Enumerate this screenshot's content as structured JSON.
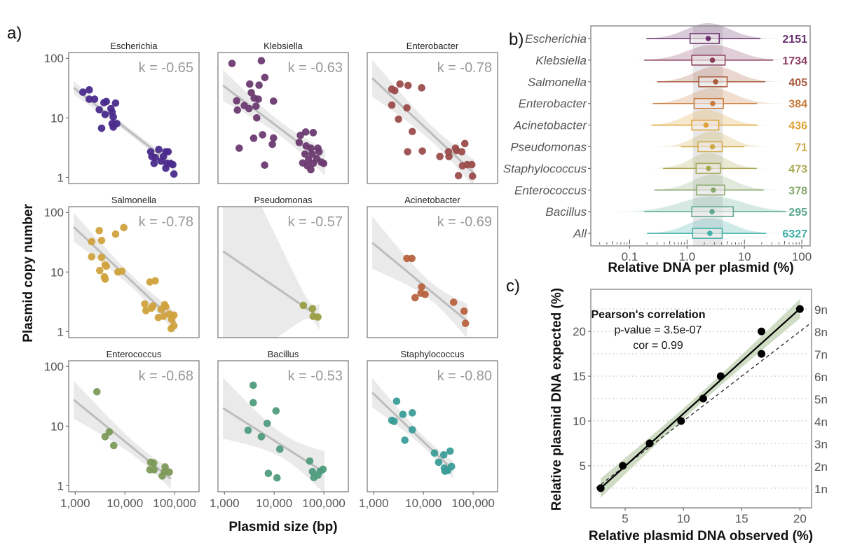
{
  "panel_labels": {
    "a": "a)",
    "b": "b)",
    "c": "c)"
  },
  "chart_data": [
    {
      "type": "scatter",
      "panel": "a",
      "xlabel": "Plasmid size (bp)",
      "ylabel": "Plasmid copy number",
      "x_scale": "log",
      "y_scale": "log",
      "xlim": [
        740,
        310000
      ],
      "ylim": [
        0.79,
        125
      ],
      "x_ticks": [
        1000,
        10000,
        100000
      ],
      "x_tick_labels": [
        "1,000",
        "10,000",
        "100,000"
      ],
      "y_ticks": [
        1,
        10,
        100
      ],
      "y_tick_labels": [
        "1",
        "10",
        "100"
      ],
      "grid": false,
      "trend_line_color": "#bdbdbd",
      "band_color": "#e6e6e6",
      "facets": [
        {
          "name": "Escherichia",
          "k_label": "k = -0.65",
          "k": -0.65,
          "color": "#4a2a8c",
          "points": [
            [
              1430,
              27
            ],
            [
              1920,
              29.5
            ],
            [
              1920,
              20.6
            ],
            [
              2460,
              20.6
            ],
            [
              3050,
              13.7
            ],
            [
              3790,
              18
            ],
            [
              4230,
              18.8
            ],
            [
              4000,
              11.4
            ],
            [
              5240,
              14.3
            ],
            [
              5530,
              12.5
            ],
            [
              6500,
              17.7
            ],
            [
              5840,
              10.4
            ],
            [
              5530,
              8
            ],
            [
              6870,
              8
            ],
            [
              5840,
              7
            ],
            [
              3400,
              6.7
            ],
            [
              33000,
              2.7
            ],
            [
              40900,
              2.15
            ],
            [
              48100,
              2.95
            ],
            [
              66500,
              2.7
            ],
            [
              74100,
              2.7
            ],
            [
              38700,
              1.72
            ],
            [
              53600,
              1.88
            ],
            [
              70200,
              1.72
            ],
            [
              92000,
              1.64
            ],
            [
              66500,
              1.43
            ],
            [
              97000,
              1.14
            ],
            [
              34800,
              2.25
            ],
            [
              59700,
              2.25
            ],
            [
              82600,
              1.72
            ]
          ]
        },
        {
          "name": "Klebsiella",
          "k_label": "k = -0.63",
          "k": -0.63,
          "color": "#6b3a70",
          "points": [
            [
              1420,
              82
            ],
            [
              5530,
              91
            ],
            [
              6500,
              47.6
            ],
            [
              3220,
              37
            ],
            [
              4970,
              35.4
            ],
            [
              3470,
              26.5
            ],
            [
              3960,
              21.5
            ],
            [
              4800,
              20.6
            ],
            [
              1760,
              19.3
            ],
            [
              2510,
              16.1
            ],
            [
              3120,
              14.3
            ],
            [
              4320,
              15.7
            ],
            [
              9700,
              19.1
            ],
            [
              1820,
              13.5
            ],
            [
              4460,
              10
            ],
            [
              3870,
              4.55
            ],
            [
              5840,
              5.2
            ],
            [
              9700,
              4.6
            ],
            [
              9200,
              3.6
            ],
            [
              1980,
              3.1
            ],
            [
              6440,
              1.61
            ],
            [
              33700,
              5.1
            ],
            [
              43100,
              5.8
            ],
            [
              61000,
              5.65
            ],
            [
              31900,
              3.87
            ],
            [
              44100,
              3.38
            ],
            [
              54700,
              3.1
            ],
            [
              75700,
              3.1
            ],
            [
              41800,
              2.47
            ],
            [
              57800,
              2.47
            ],
            [
              80000,
              2.7
            ],
            [
              49100,
              1.97
            ],
            [
              37500,
              1.75
            ],
            [
              61000,
              1.72
            ],
            [
              89000,
              1.8
            ],
            [
              46500,
              1.57
            ],
            [
              54700,
              1.35
            ],
            [
              99000,
              1.72
            ],
            [
              71800,
              2.06
            ]
          ]
        },
        {
          "name": "Enterobacter",
          "k_label": "k = -0.78",
          "k": -0.78,
          "color": "#9c4d4d",
          "points": [
            [
              2310,
              30.3
            ],
            [
              2650,
              28.7
            ],
            [
              3370,
              37
            ],
            [
              4910,
              35
            ],
            [
              9200,
              32
            ],
            [
              2310,
              16.4
            ],
            [
              4650,
              14.7
            ],
            [
              3150,
              9.5
            ],
            [
              5970,
              5.9
            ],
            [
              4810,
              2.7
            ],
            [
              9500,
              2.77
            ],
            [
              21400,
              2.25
            ],
            [
              32600,
              2.25
            ],
            [
              31900,
              2.7
            ],
            [
              44100,
              3.1
            ],
            [
              59000,
              2.7
            ],
            [
              68000,
              3.7
            ],
            [
              46500,
              2.82
            ],
            [
              61000,
              1.57
            ],
            [
              75700,
              1.64
            ],
            [
              94000,
              1.64
            ],
            [
              50700,
              1.07
            ],
            [
              97000,
              1.05
            ]
          ]
        },
        {
          "name": "Salmonella",
          "k_label": "k = -0.78",
          "k": -0.78,
          "color": "#d0a23e",
          "points": [
            [
              2140,
              32.3
            ],
            [
              3050,
              49.4
            ],
            [
              3400,
              33.8
            ],
            [
              6500,
              43.2
            ],
            [
              9500,
              55.6
            ],
            [
              2140,
              18
            ],
            [
              3400,
              17.6
            ],
            [
              4230,
              12.5
            ],
            [
              4000,
              13.1
            ],
            [
              3120,
              10.6
            ],
            [
              3870,
              8.3
            ],
            [
              4000,
              7.6
            ],
            [
              7240,
              10
            ],
            [
              8710,
              10.3
            ],
            [
              31900,
              6.8
            ],
            [
              40800,
              7.1
            ],
            [
              25100,
              2.9
            ],
            [
              26500,
              2.25
            ],
            [
              34000,
              2.47
            ],
            [
              36700,
              2.7
            ],
            [
              63000,
              2.82
            ],
            [
              66500,
              2.6
            ],
            [
              53600,
              2.35
            ],
            [
              47100,
              1.72
            ],
            [
              59700,
              1.8
            ],
            [
              78200,
              1.97
            ],
            [
              97000,
              1.88
            ],
            [
              87100,
              1.6
            ],
            [
              97000,
              1.25
            ],
            [
              85300,
              1.12
            ]
          ]
        },
        {
          "name": "Pseudomonas",
          "k_label": "k = -0.57",
          "k": -0.57,
          "color": "#9a9e45",
          "points": [
            [
              38700,
              2.75
            ],
            [
              59000,
              2.42
            ],
            [
              61000,
              1.8
            ],
            [
              75700,
              1.75
            ]
          ]
        },
        {
          "name": "Acinetobacter",
          "k_label": "k = -0.69",
          "k": -0.69,
          "color": "#b8633f",
          "points": [
            [
              4650,
              16.9
            ],
            [
              5840,
              16.9
            ],
            [
              6790,
              3.7
            ],
            [
              9200,
              5.6
            ],
            [
              8910,
              4.4
            ],
            [
              10800,
              4.2
            ],
            [
              40400,
              3.1
            ],
            [
              65800,
              2.2
            ],
            [
              70200,
              1.37
            ]
          ]
        },
        {
          "name": "Enterococcus",
          "k_label": "k = -0.68",
          "k": -0.68,
          "color": "#7c9a58",
          "points": [
            [
              2740,
              37.7
            ],
            [
              4000,
              6.65
            ],
            [
              4860,
              8
            ],
            [
              5970,
              4.72
            ],
            [
              33000,
              2.47
            ],
            [
              37900,
              2.4
            ],
            [
              31900,
              1.85
            ],
            [
              38700,
              1.85
            ],
            [
              64400,
              2.06
            ],
            [
              63000,
              1.72
            ],
            [
              78200,
              1.69
            ],
            [
              56500,
              1.46
            ]
          ]
        },
        {
          "name": "Bacillus",
          "k_label": "k = -0.53",
          "k": -0.53,
          "color": "#4f9c7e",
          "points": [
            [
              3790,
              48.5
            ],
            [
              3790,
              24.7
            ],
            [
              10900,
              18
            ],
            [
              7240,
              11.1
            ],
            [
              2990,
              8.5
            ],
            [
              5530,
              6.65
            ],
            [
              13000,
              4.1
            ],
            [
              7650,
              1.61
            ],
            [
              11400,
              1.35
            ],
            [
              51900,
              2.58
            ],
            [
              59000,
              1.72
            ],
            [
              63000,
              1.37
            ],
            [
              84400,
              1.75
            ],
            [
              96000,
              1.88
            ],
            [
              75700,
              1.5
            ]
          ]
        },
        {
          "name": "Staphylococcus",
          "k_label": "k = -0.80",
          "k": -0.8,
          "color": "#3b9d97",
          "points": [
            [
              2890,
              26.2
            ],
            [
              2310,
              12.5
            ],
            [
              2570,
              12
            ],
            [
              3870,
              15.7
            ],
            [
              5970,
              16.7
            ],
            [
              5970,
              8.7
            ],
            [
              4230,
              5.8
            ],
            [
              16700,
              3.53
            ],
            [
              25700,
              3.29
            ],
            [
              34400,
              3.8
            ],
            [
              20200,
              2.47
            ],
            [
              26300,
              1.97
            ],
            [
              29300,
              1.85
            ],
            [
              36700,
              2.1
            ],
            [
              30800,
              1.8
            ],
            [
              27100,
              1.75
            ]
          ]
        }
      ]
    },
    {
      "type": "boxplot",
      "panel": "b",
      "xlabel": "Relative DNA per plasmid (%)",
      "x_scale": "log",
      "xlim": [
        0.021,
        140
      ],
      "x_ticks": [
        0.1,
        1.0,
        10,
        100
      ],
      "x_tick_labels": [
        "0.1",
        "1.0",
        "10",
        "100"
      ],
      "shaded_range": [
        1.27,
        4.2
      ],
      "groups": [
        {
          "name": "Escherichia",
          "n": "2151",
          "color": "#6a2f6e",
          "whisker_low": 0.196,
          "q1": 1.13,
          "median": 2.34,
          "q3": 3.64,
          "whisker_high": 18.9
        },
        {
          "name": "Klebsiella",
          "n": "1734",
          "color": "#8a3c5c",
          "whisker_low": 0.179,
          "q1": 1.21,
          "median": 2.77,
          "q3": 4.6,
          "whisker_high": 31.6
        },
        {
          "name": "Salmonella",
          "n": "405",
          "color": "#a85a3c",
          "whisker_low": 0.3,
          "q1": 1.6,
          "median": 3.15,
          "q3": 5.0,
          "whisker_high": 23
        },
        {
          "name": "Enterobacter",
          "n": "384",
          "color": "#c97b3c",
          "whisker_low": 0.255,
          "q1": 1.33,
          "median": 2.8,
          "q3": 4.3,
          "whisker_high": 16.7
        },
        {
          "name": "Acinetobacter",
          "n": "436",
          "color": "#e0a236",
          "whisker_low": 0.24,
          "q1": 1.21,
          "median": 2.14,
          "q3": 3.57,
          "whisker_high": 17
        },
        {
          "name": "Pseudomonas",
          "n": "71",
          "color": "#cda844",
          "whisker_low": 0.78,
          "q1": 1.55,
          "median": 2.77,
          "q3": 4.1,
          "whisker_high": 10
        },
        {
          "name": "Staphylococcus",
          "n": "473",
          "color": "#a8a852",
          "whisker_low": 0.38,
          "q1": 1.44,
          "median": 2.37,
          "q3": 3.8,
          "whisker_high": 16.4
        },
        {
          "name": "Enterococcus",
          "n": "378",
          "color": "#86a86c",
          "whisker_low": 0.27,
          "q1": 1.47,
          "median": 2.87,
          "q3": 4.5,
          "whisker_high": 21.5
        },
        {
          "name": "Bacillus",
          "n": "295",
          "color": "#5aa88e",
          "whisker_low": 0.18,
          "q1": 1.21,
          "median": 2.73,
          "q3": 6.4,
          "whisker_high": 53
        },
        {
          "name": "All",
          "n": "6327",
          "color": "#3fb0a6",
          "whisker_low": 0.2,
          "q1": 1.25,
          "median": 2.5,
          "q3": 4.1,
          "whisker_high": 24
        }
      ]
    },
    {
      "type": "scatter",
      "panel": "c",
      "xlabel": "Relative plasmid DNA observed (%)",
      "ylabel": "Relative plasmid DNA expected (%)",
      "xlim": [
        2.05,
        21.0
      ],
      "ylim": [
        0.3,
        24.7
      ],
      "x_ticks": [
        5,
        10,
        15,
        20
      ],
      "y_ticks": [
        5,
        10,
        15,
        20
      ],
      "secondary_y_ticks": [
        2.5,
        5,
        7.5,
        10,
        12.5,
        15,
        17.5,
        20,
        22.5
      ],
      "secondary_y_labels": [
        "1n",
        "2n",
        "3n",
        "4n",
        "5n",
        "6n",
        "7n",
        "8n",
        "9n"
      ],
      "points": [
        [
          2.9,
          2.5
        ],
        [
          4.8,
          5
        ],
        [
          7.1,
          7.5
        ],
        [
          9.8,
          10
        ],
        [
          11.7,
          12.5
        ],
        [
          13.2,
          15
        ],
        [
          16.7,
          17.5
        ],
        [
          16.7,
          20
        ],
        [
          20,
          22.5
        ]
      ],
      "reference_line": "y = x (dashed)",
      "fit_band_color": "#c9d8bd",
      "annotation": {
        "title": "Pearson's correlation",
        "p_value": "p-value = 3.5e-07",
        "cor": "cor = 0.99"
      }
    }
  ]
}
